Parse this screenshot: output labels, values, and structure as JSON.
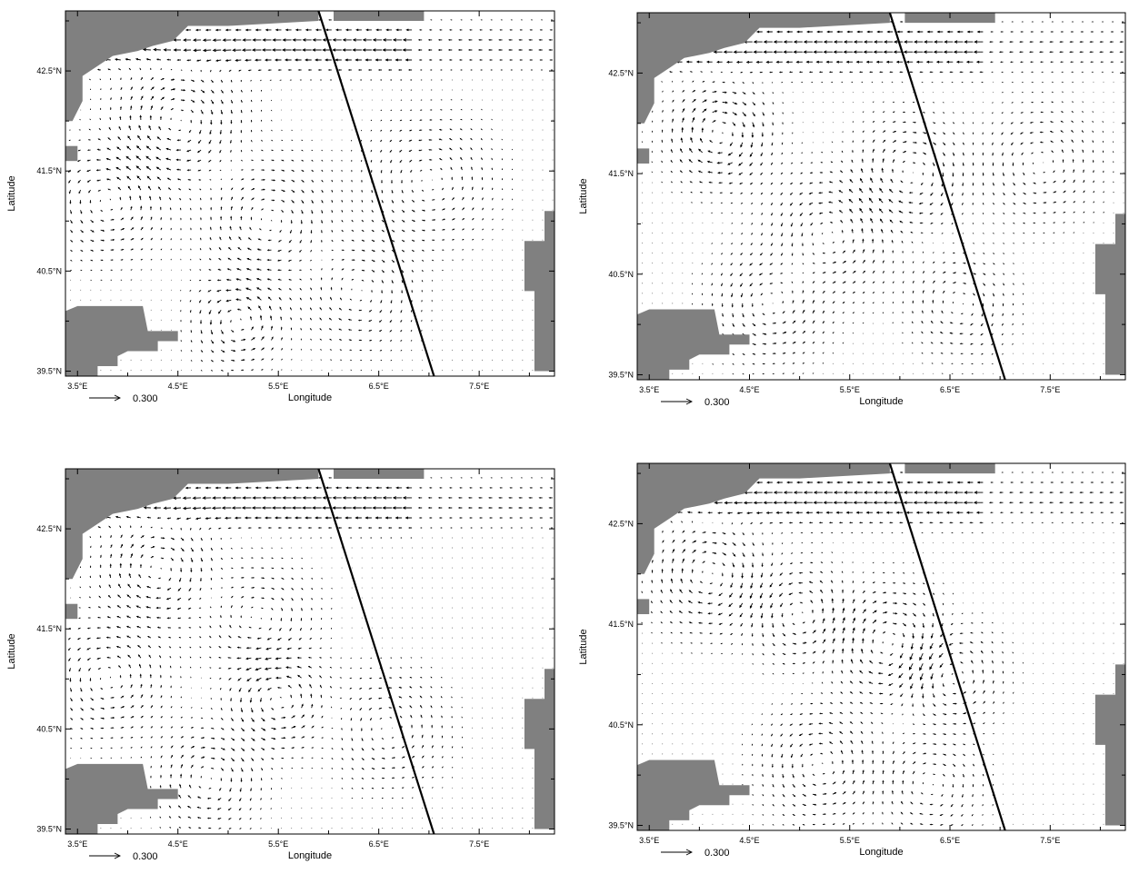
{
  "figure": {
    "panels": [
      {
        "id": "top-left"
      },
      {
        "id": "top-right"
      },
      {
        "id": "bottom-left"
      },
      {
        "id": "bottom-right"
      }
    ],
    "axes": {
      "xlabel": "Longitude",
      "ylabel": "Latitude",
      "x_ticks": [
        "3.5°E",
        "4.5°E",
        "5.5°E",
        "6.5°E",
        "7.5°E"
      ],
      "y_ticks": [
        "42.5°N",
        "41.5°N",
        "40.5°N",
        "39.5°N"
      ],
      "xlim_deg_east": [
        3.38,
        8.25
      ],
      "ylim_deg_north": [
        39.45,
        43.1
      ]
    },
    "reference_vector": {
      "value": "0.300"
    },
    "track_line": {
      "start": {
        "lon": 5.9,
        "lat": 43.1
      },
      "end": {
        "lon": 7.05,
        "lat": 39.45
      }
    },
    "colors": {
      "land": "#808080",
      "arrows": "#000000",
      "track": "#000000",
      "background": "#ffffff"
    }
  }
}
